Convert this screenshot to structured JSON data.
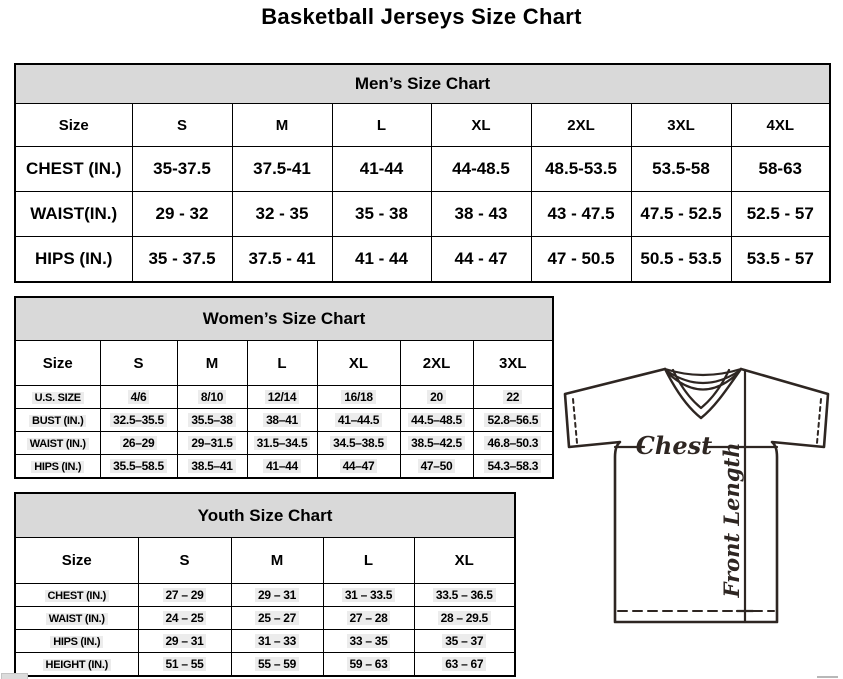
{
  "page": {
    "title": "Basketball Jerseys Size Chart"
  },
  "tables": [
    {
      "caption": "Men’s Size Chart",
      "columns": [
        "Size",
        "S",
        "M",
        "L",
        "XL",
        "2XL",
        "3XL",
        "4XL"
      ],
      "rows": [
        {
          "label": "CHEST (IN.)",
          "values": [
            "35-37.5",
            "37.5-41",
            "41-44",
            "44-48.5",
            "48.5-53.5",
            "53.5-58",
            "58-63"
          ]
        },
        {
          "label": "WAIST(IN.)",
          "values": [
            "29 - 32",
            "32 - 35",
            "35 - 38",
            "38 - 43",
            "43 - 47.5",
            "47.5 - 52.5",
            "52.5 - 57"
          ]
        },
        {
          "label": "HIPS (IN.)",
          "values": [
            "35 - 37.5",
            "37.5 - 41",
            "41 - 44",
            "44 - 47",
            "47 - 50.5",
            "50.5 - 53.5",
            "53.5 - 57"
          ]
        }
      ]
    },
    {
      "caption": "Women’s Size Chart",
      "columns": [
        "Size",
        "S",
        "M",
        "L",
        "XL",
        "2XL",
        "3XL"
      ],
      "rows": [
        {
          "label": "U.S. SIZE",
          "values": [
            "4/6",
            "8/10",
            "12/14",
            "16/18",
            "20",
            "22"
          ]
        },
        {
          "label": "BUST (IN.)",
          "values": [
            "32.5–35.5",
            "35.5–38",
            "38–41",
            "41–44.5",
            "44.5–48.5",
            "52.8–56.5"
          ]
        },
        {
          "label": "WAIST (IN.)",
          "values": [
            "26–29",
            "29–31.5",
            "31.5–34.5",
            "34.5–38.5",
            "38.5–42.5",
            "46.8–50.3"
          ]
        },
        {
          "label": "HIPS (IN.)",
          "values": [
            "35.5–58.5",
            "38.5–41",
            "41–44",
            "44–47",
            "47–50",
            "54.3–58.3"
          ]
        }
      ]
    },
    {
      "caption": "Youth Size Chart",
      "columns": [
        "Size",
        "S",
        "M",
        "L",
        "XL"
      ],
      "rows": [
        {
          "label": "CHEST (IN.)",
          "values": [
            "27 – 29",
            "29 – 31",
            "31 – 33.5",
            "33.5 – 36.5"
          ]
        },
        {
          "label": "WAIST (IN.)",
          "values": [
            "24 – 25",
            "25 – 27",
            "27 – 28",
            "28 – 29.5"
          ]
        },
        {
          "label": "HIPS (IN.)",
          "values": [
            "29 – 31",
            "31 – 33",
            "33 – 35",
            "35 – 37"
          ]
        },
        {
          "label": "HEIGHT (IN.)",
          "values": [
            "51 – 55",
            "55 – 59",
            "59 – 63",
            "63 – 67"
          ]
        }
      ]
    }
  ],
  "diagram": {
    "chest_label": "Chest",
    "front_length_label": "Front Length"
  },
  "colors": {
    "caption_bg": "#d9d9d9",
    "table_border": "#000000",
    "diagram_stroke": "#2e2622",
    "value_highlight": "#ececec"
  }
}
